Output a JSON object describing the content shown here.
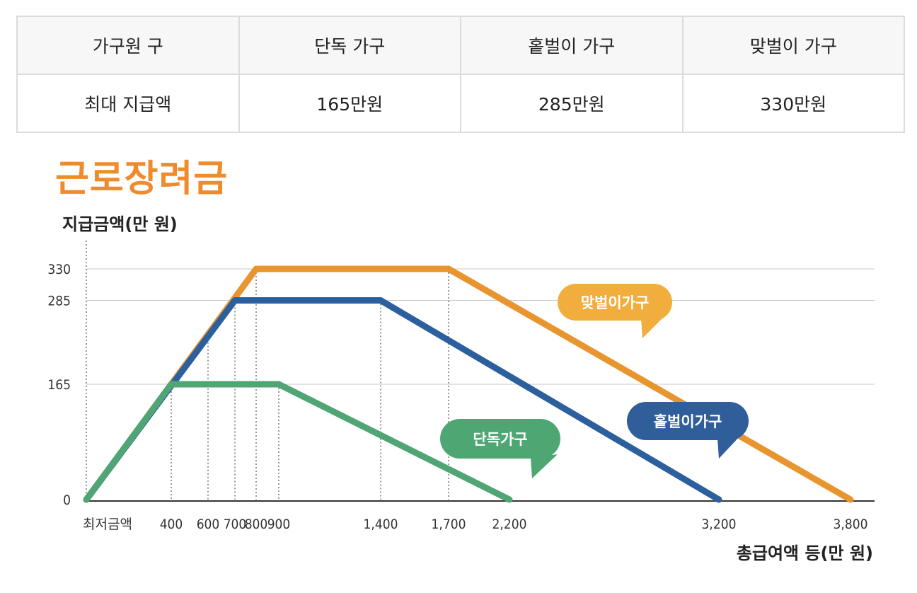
{
  "table": {
    "headers": [
      "가구원 구",
      "단독 가구",
      "홑벌이 가구",
      "맞벌이 가구"
    ],
    "rows": [
      [
        "최대 지급액",
        "165만원",
        "285만원",
        "330만원"
      ]
    ]
  },
  "chart_data": {
    "type": "line",
    "title": "근로장려금",
    "ylabel": "지급금액(만 원)",
    "xlabel": "총급여액 등(만 원)",
    "x_tick_labels": [
      "최저금액",
      "400",
      "600",
      "700",
      "800",
      "900",
      "1,400",
      "1,700",
      "2,200",
      "3,200",
      "3,800"
    ],
    "y_tick_labels": [
      "0",
      "165",
      "285",
      "330"
    ],
    "ylim": [
      0,
      330
    ],
    "series": [
      {
        "name": "단독가구",
        "color": "#4fa574",
        "points": [
          [
            0,
            0
          ],
          [
            400,
            165
          ],
          [
            900,
            165
          ],
          [
            2200,
            0
          ]
        ]
      },
      {
        "name": "홑벌이가구",
        "color": "#2c5f9e",
        "points": [
          [
            0,
            0
          ],
          [
            700,
            285
          ],
          [
            1400,
            285
          ],
          [
            3200,
            0
          ]
        ]
      },
      {
        "name": "맞벌이가구",
        "color": "#e8952f",
        "points": [
          [
            0,
            0
          ],
          [
            800,
            330
          ],
          [
            1700,
            330
          ],
          [
            3800,
            0
          ]
        ]
      }
    ],
    "callout_colors": {
      "단독가구": "#4ea673",
      "홑벌이가구": "#2f5e9b",
      "맞벌이가구": "#f2ae3c"
    }
  }
}
